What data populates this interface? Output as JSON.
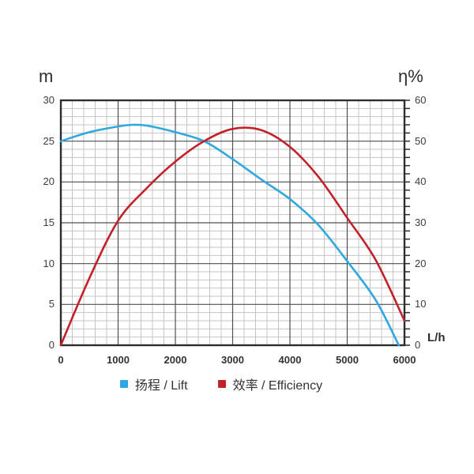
{
  "page": {
    "background": "#ffffff"
  },
  "axis_units": {
    "left": "m",
    "right": "η%",
    "bottom": "L/h"
  },
  "legend": {
    "items": [
      {
        "label": "扬程 / Lift",
        "color": "#2FA8E1"
      },
      {
        "label": "效率 / Efficiency",
        "color": "#C32129"
      }
    ]
  },
  "chart_data": {
    "type": "line",
    "title": "",
    "x_axis": {
      "unit": "L/h",
      "min": 0,
      "max": 6000,
      "ticks": [
        0,
        1000,
        2000,
        3000,
        4000,
        5000,
        6000
      ],
      "minor_step": 200
    },
    "y_axis_left": {
      "unit": "m",
      "min": 0,
      "max": 30,
      "ticks": [
        0,
        5,
        10,
        15,
        20,
        25,
        30
      ],
      "minor_step": 1
    },
    "y_axis_right": {
      "unit": "η%",
      "min": 0,
      "max": 60,
      "ticks": [
        0,
        10,
        20,
        30,
        40,
        50,
        60
      ],
      "minor_step": 2
    },
    "grid": {
      "on": true,
      "minor_color": "#c4c4c4",
      "major_color": "#4f4f4f",
      "frame_color": "#2d2d2d"
    },
    "legend_position": "bottom-center",
    "series": [
      {
        "name": "扬程 / Lift",
        "axis": "left",
        "color": "#2FA8E1",
        "points": [
          [
            0,
            25.0
          ],
          [
            500,
            26.1
          ],
          [
            1000,
            26.8
          ],
          [
            1250,
            27.0
          ],
          [
            1500,
            26.9
          ],
          [
            2000,
            26.1
          ],
          [
            2500,
            25.0
          ],
          [
            3000,
            22.8
          ],
          [
            3500,
            20.3
          ],
          [
            4000,
            17.9
          ],
          [
            4500,
            14.7
          ],
          [
            5000,
            10.3
          ],
          [
            5500,
            5.5
          ],
          [
            5900,
            0
          ]
        ]
      },
      {
        "name": "效率 / Efficiency",
        "axis": "right",
        "color": "#C32129",
        "points": [
          [
            0,
            0
          ],
          [
            500,
            16.5
          ],
          [
            1000,
            30.5
          ],
          [
            1500,
            38.5
          ],
          [
            2000,
            45.0
          ],
          [
            2500,
            50.0
          ],
          [
            3000,
            53.0
          ],
          [
            3500,
            52.7
          ],
          [
            4000,
            48.6
          ],
          [
            4500,
            41.2
          ],
          [
            5000,
            31.2
          ],
          [
            5500,
            20.8
          ],
          [
            6000,
            6.0
          ]
        ]
      }
    ]
  }
}
